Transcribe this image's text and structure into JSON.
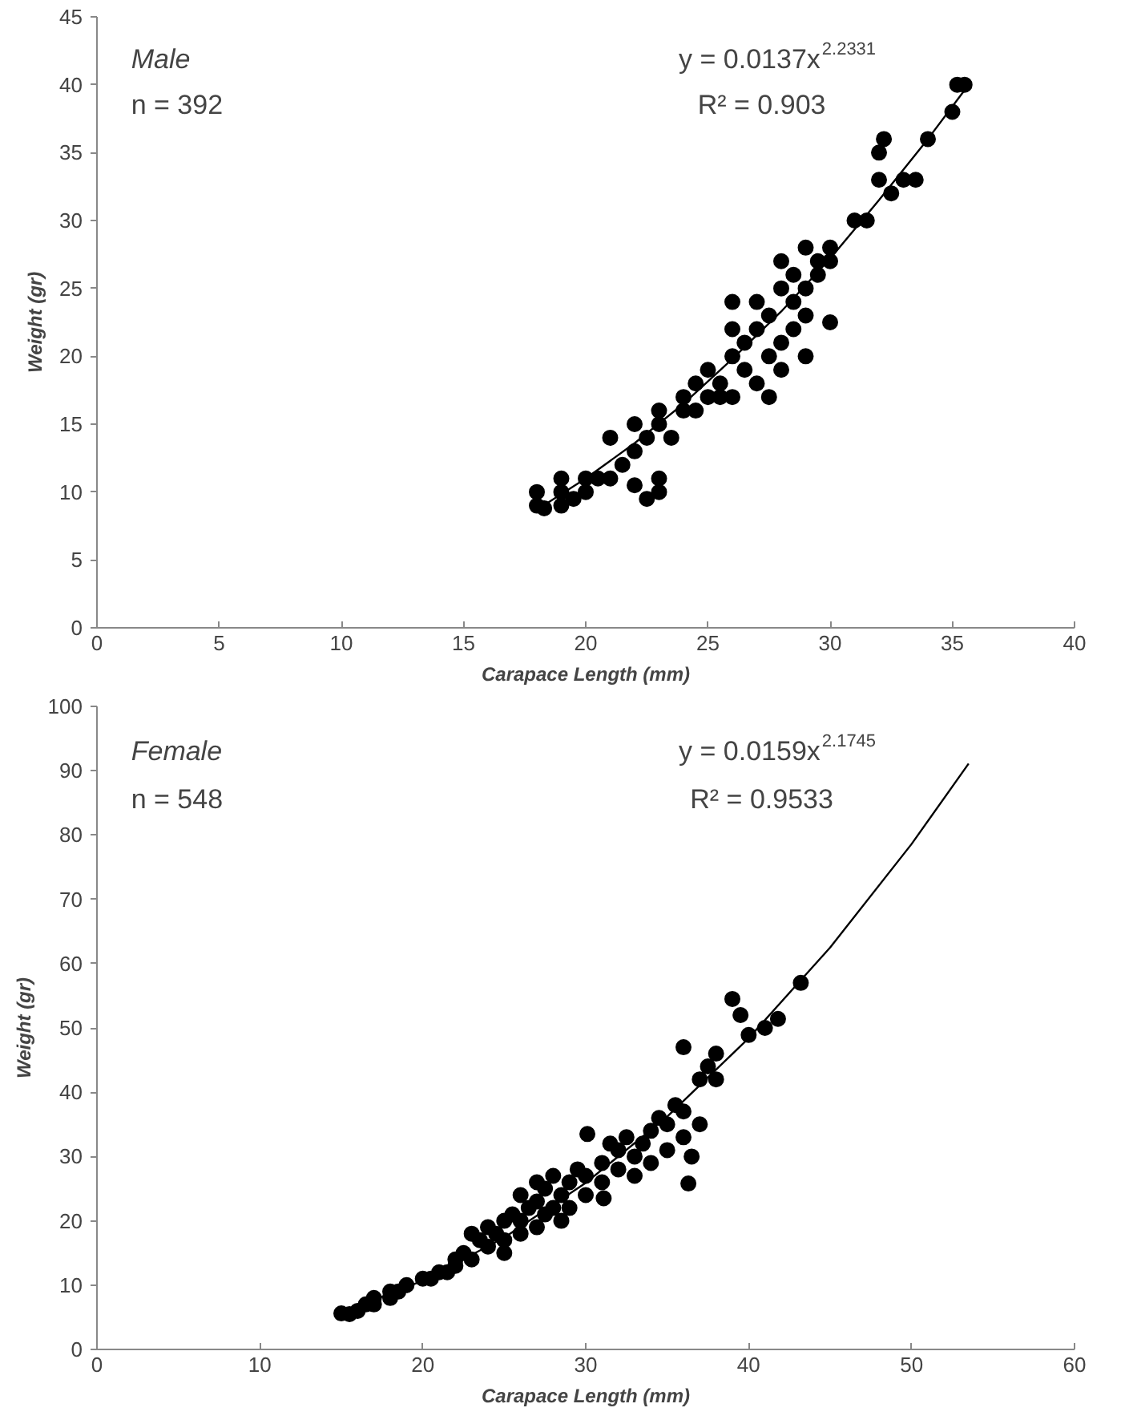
{
  "chart_data": [
    {
      "type": "scatter",
      "xlabel": "Carapace Length (mm)",
      "ylabel": "Weight (gr)",
      "xlim": [
        0,
        40
      ],
      "ylim": [
        0,
        45
      ],
      "xticks": [
        0,
        5,
        10,
        15,
        20,
        25,
        30,
        35,
        40
      ],
      "yticks": [
        0,
        5,
        10,
        15,
        20,
        25,
        30,
        35,
        40,
        45
      ],
      "grid": false,
      "annotations": [
        "Male",
        "n = 392",
        "y = 0.0137x$^{2.2331}$",
        "R² = 0.903"
      ],
      "series": [
        {
          "marker": "circle",
          "color": "#000000",
          "x": [
            18,
            18,
            18.3,
            19,
            19,
            19,
            19.5,
            20,
            20,
            20.5,
            21,
            21,
            21.5,
            22,
            22,
            22,
            22.5,
            22.5,
            23,
            23,
            23,
            23,
            23.5,
            24,
            24,
            24.5,
            24.5,
            25,
            25,
            25.5,
            25.5,
            26,
            26,
            26,
            26,
            26.5,
            26.5,
            27,
            27,
            27,
            27.5,
            27.5,
            27.5,
            28,
            28,
            28,
            28,
            28.5,
            28.5,
            28.5,
            29,
            29,
            29,
            29,
            29.5,
            29.5,
            30,
            30,
            30,
            31,
            31.5,
            32,
            32,
            32.2,
            32.5,
            33,
            33.5,
            34,
            35,
            35.2,
            35.5
          ],
          "values": [
            9,
            10,
            8.8,
            9,
            10,
            11,
            9.5,
            10,
            11,
            11,
            11,
            14,
            12,
            13,
            15,
            10.5,
            9.5,
            14,
            10,
            11,
            15,
            16,
            14,
            16,
            17,
            18,
            16,
            17,
            19,
            18,
            17,
            17,
            20,
            22,
            24,
            19,
            21,
            18,
            22,
            24,
            17,
            20,
            23,
            19,
            21,
            25,
            27,
            22,
            24,
            26,
            23,
            25,
            28,
            20,
            26,
            27,
            27,
            22.5,
            28,
            30,
            30,
            33,
            35,
            36,
            32,
            33,
            33,
            36,
            38,
            40,
            40
          ]
        },
        {
          "type": "line",
          "color": "#000000",
          "x": [
            18,
            20,
            22,
            24,
            26,
            28,
            30,
            32,
            34,
            35.5
          ],
          "values": [
            8.7,
            11.0,
            13.6,
            16.5,
            19.8,
            23.3,
            27.2,
            31.5,
            36.0,
            39.6
          ]
        }
      ]
    },
    {
      "type": "scatter",
      "xlabel": "Carapace Length (mm)",
      "ylabel": "Weight (gr)",
      "xlim": [
        0,
        60
      ],
      "ylim": [
        0,
        100
      ],
      "xticks": [
        0,
        10,
        20,
        30,
        40,
        50,
        60
      ],
      "yticks": [
        0,
        10,
        20,
        30,
        40,
        50,
        60,
        70,
        80,
        90,
        100
      ],
      "grid": false,
      "annotations": [
        "Female",
        "n = 548",
        "y = 0.0159x$^{2.1745}$",
        "R² = 0.9533"
      ],
      "series": [
        {
          "marker": "circle",
          "color": "#000000",
          "x": [
            15,
            15.5,
            16,
            16.5,
            17,
            17,
            18,
            18,
            18.5,
            19,
            20,
            20.5,
            21,
            21.5,
            22,
            22,
            22.5,
            23,
            23,
            23.5,
            24,
            24,
            24.5,
            25,
            25,
            25,
            25.5,
            26,
            26,
            26,
            26.5,
            27,
            27,
            27,
            27.5,
            27.5,
            28,
            28,
            28.5,
            28.5,
            29,
            29,
            29.5,
            30,
            30,
            30.1,
            31.1,
            31,
            31,
            31.5,
            32,
            32,
            32.5,
            33,
            33,
            33.5,
            34,
            34,
            34.5,
            35,
            35,
            35.5,
            36,
            36,
            36,
            36.5,
            36.3,
            37,
            37,
            37.5,
            38,
            38,
            39,
            39.5,
            40,
            41,
            41.8,
            43.2
          ],
          "values": [
            5.6,
            5.5,
            6,
            7,
            7,
            8,
            8,
            9,
            9,
            10,
            11,
            11,
            12,
            12,
            13,
            14,
            15,
            14,
            18,
            17,
            16,
            19,
            18,
            17,
            20,
            15,
            21,
            18,
            20,
            24,
            22,
            19,
            23,
            26,
            21,
            25,
            22,
            27,
            20,
            24,
            22,
            26,
            28,
            24,
            27,
            33.5,
            23.5,
            26,
            29,
            32,
            28,
            31,
            33,
            27,
            30,
            32,
            34,
            29,
            36,
            31,
            35,
            38,
            33,
            37,
            47,
            30,
            25.8,
            35,
            42,
            44,
            42,
            46,
            54.5,
            52,
            48.9,
            50,
            51.4,
            57
          ]
        },
        {
          "type": "line",
          "color": "#000000",
          "x": [
            15,
            20,
            25,
            30,
            35,
            40,
            45,
            50,
            53.5
          ],
          "values": [
            5.7,
            10.7,
            17.4,
            25.9,
            36.2,
            48.4,
            62.5,
            78.6,
            91.1
          ]
        }
      ]
    }
  ]
}
